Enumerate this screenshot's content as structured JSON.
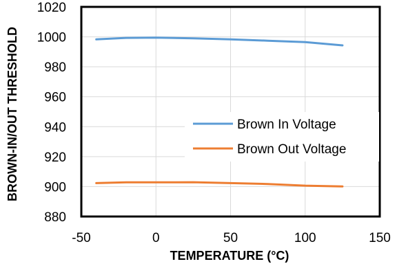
{
  "chart_data": {
    "type": "line",
    "xlabel": "TEMPERATURE (°C)",
    "ylabel": "BROWN-IN/OUT THRESHOLD",
    "xlim": [
      -50,
      150
    ],
    "ylim": [
      880,
      1020
    ],
    "xticks": [
      -50,
      0,
      50,
      100,
      150
    ],
    "yticks": [
      880,
      900,
      920,
      940,
      960,
      980,
      1000,
      1020
    ],
    "grid": true,
    "legend_position": "right",
    "series": [
      {
        "name": "Brown In Voltage",
        "color": "#5b9bd5",
        "x": [
          -40,
          -20,
          0,
          25,
          50,
          75,
          100,
          125
        ],
        "y": [
          998.3,
          999.3,
          999.5,
          999.0,
          998.3,
          997.4,
          996.5,
          994.3
        ]
      },
      {
        "name": "Brown Out Voltage",
        "color": "#ed7d31",
        "x": [
          -40,
          -20,
          0,
          25,
          50,
          75,
          100,
          125
        ],
        "y": [
          902.3,
          902.8,
          902.8,
          902.9,
          902.3,
          901.7,
          900.6,
          900.1
        ]
      }
    ]
  }
}
